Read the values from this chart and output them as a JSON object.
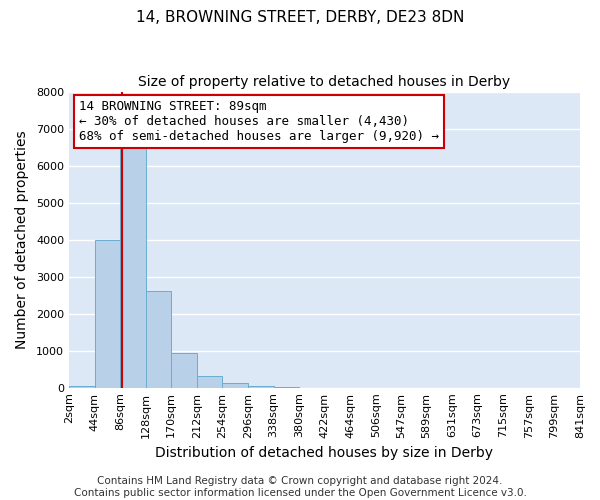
{
  "title": "14, BROWNING STREET, DERBY, DE23 8DN",
  "subtitle": "Size of property relative to detached houses in Derby",
  "xlabel": "Distribution of detached houses by size in Derby",
  "ylabel": "Number of detached properties",
  "bar_edges": [
    2,
    44,
    86,
    128,
    170,
    212,
    254,
    296,
    338,
    380,
    422,
    464,
    506,
    547,
    589,
    631,
    673,
    715,
    757,
    799,
    841
  ],
  "bar_heights": [
    50,
    4000,
    6600,
    2600,
    950,
    320,
    120,
    50,
    10,
    0,
    0,
    0,
    0,
    0,
    0,
    0,
    0,
    0,
    0,
    0
  ],
  "bar_color": "#b8d0e8",
  "bar_edge_color": "#6aadcf",
  "property_size": 89,
  "red_line_color": "#cc0000",
  "annotation_line1": "14 BROWNING STREET: 89sqm",
  "annotation_line2": "← 30% of detached houses are smaller (4,430)",
  "annotation_line3": "68% of semi-detached houses are larger (9,920) →",
  "annotation_box_facecolor": "#ffffff",
  "annotation_box_edgecolor": "#cc0000",
  "ylim": [
    0,
    8000
  ],
  "yticks": [
    0,
    1000,
    2000,
    3000,
    4000,
    5000,
    6000,
    7000,
    8000
  ],
  "tick_labels": [
    "2sqm",
    "44sqm",
    "86sqm",
    "128sqm",
    "170sqm",
    "212sqm",
    "254sqm",
    "296sqm",
    "338sqm",
    "380sqm",
    "422sqm",
    "464sqm",
    "506sqm",
    "547sqm",
    "589sqm",
    "631sqm",
    "673sqm",
    "715sqm",
    "757sqm",
    "799sqm",
    "841sqm"
  ],
  "footer_line1": "Contains HM Land Registry data © Crown copyright and database right 2024.",
  "footer_line2": "Contains public sector information licensed under the Open Government Licence v3.0.",
  "fig_background": "#ffffff",
  "plot_background": "#dce8f5",
  "grid_color": "#ffffff",
  "title_fontsize": 11,
  "subtitle_fontsize": 10,
  "axis_label_fontsize": 10,
  "tick_fontsize": 8,
  "annotation_fontsize": 9,
  "footer_fontsize": 7.5
}
